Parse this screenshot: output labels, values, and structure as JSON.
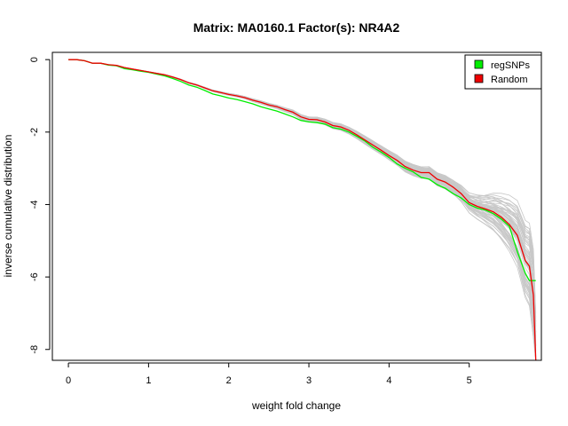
{
  "chart_data": {
    "type": "line",
    "title": "Matrix: MA0160.1 Factor(s): NR4A2",
    "xlabel": "weight fold change",
    "ylabel": "inverse cumulative distribution",
    "xlim": [
      -0.2,
      5.9
    ],
    "ylim": [
      -8.3,
      0.2
    ],
    "xticks": [
      0,
      1,
      2,
      3,
      4,
      5
    ],
    "yticks": [
      0,
      -2,
      -4,
      -6,
      -8
    ],
    "legend": {
      "position": "top-right",
      "entries": [
        {
          "label": "regSNPs",
          "color": "#00ee00"
        },
        {
          "label": "Random",
          "color": "#ee0000"
        }
      ]
    },
    "background_color": "#c8c8c8",
    "series": [
      {
        "name": "regSNPs",
        "color": "#00ee00",
        "x": [
          0.0,
          0.1,
          0.2,
          0.3,
          0.4,
          0.5,
          0.6,
          0.7,
          0.8,
          0.9,
          1.0,
          1.1,
          1.2,
          1.3,
          1.4,
          1.5,
          1.6,
          1.7,
          1.8,
          1.9,
          2.0,
          2.1,
          2.2,
          2.3,
          2.4,
          2.5,
          2.6,
          2.7,
          2.8,
          2.9,
          3.0,
          3.1,
          3.2,
          3.3,
          3.4,
          3.5,
          3.6,
          3.7,
          3.8,
          3.9,
          4.0,
          4.1,
          4.2,
          4.3,
          4.4,
          4.5,
          4.6,
          4.7,
          4.8,
          4.9,
          5.0,
          5.1,
          5.2,
          5.3,
          5.4,
          5.5,
          5.6,
          5.7,
          5.75,
          5.8,
          5.83
        ],
        "y": [
          0.0,
          0.0,
          -0.03,
          -0.1,
          -0.1,
          -0.15,
          -0.17,
          -0.25,
          -0.28,
          -0.32,
          -0.35,
          -0.4,
          -0.45,
          -0.52,
          -0.6,
          -0.7,
          -0.76,
          -0.85,
          -0.95,
          -1.0,
          -1.06,
          -1.1,
          -1.16,
          -1.22,
          -1.3,
          -1.36,
          -1.42,
          -1.5,
          -1.58,
          -1.68,
          -1.72,
          -1.74,
          -1.78,
          -1.88,
          -1.92,
          -2.0,
          -2.12,
          -2.25,
          -2.42,
          -2.55,
          -2.7,
          -2.88,
          -3.0,
          -3.1,
          -3.25,
          -3.3,
          -3.45,
          -3.55,
          -3.7,
          -3.82,
          -4.0,
          -4.1,
          -4.15,
          -4.25,
          -4.4,
          -4.6,
          -5.3,
          -5.9,
          -6.1,
          -6.1,
          -6.1
        ]
      },
      {
        "name": "Random",
        "color": "#ee0000",
        "x": [
          0.0,
          0.1,
          0.2,
          0.3,
          0.4,
          0.5,
          0.6,
          0.7,
          0.8,
          0.9,
          1.0,
          1.1,
          1.2,
          1.3,
          1.4,
          1.5,
          1.6,
          1.7,
          1.8,
          1.9,
          2.0,
          2.1,
          2.2,
          2.3,
          2.4,
          2.5,
          2.6,
          2.7,
          2.8,
          2.9,
          3.0,
          3.1,
          3.2,
          3.3,
          3.4,
          3.5,
          3.6,
          3.7,
          3.8,
          3.9,
          4.0,
          4.1,
          4.2,
          4.3,
          4.4,
          4.5,
          4.6,
          4.7,
          4.8,
          4.9,
          5.0,
          5.1,
          5.2,
          5.3,
          5.4,
          5.5,
          5.6,
          5.7,
          5.75,
          5.8,
          5.83
        ],
        "y": [
          0.0,
          0.0,
          -0.03,
          -0.1,
          -0.1,
          -0.14,
          -0.16,
          -0.22,
          -0.26,
          -0.3,
          -0.34,
          -0.38,
          -0.42,
          -0.48,
          -0.55,
          -0.64,
          -0.7,
          -0.78,
          -0.86,
          -0.91,
          -0.96,
          -1.0,
          -1.05,
          -1.12,
          -1.18,
          -1.25,
          -1.3,
          -1.38,
          -1.45,
          -1.58,
          -1.65,
          -1.66,
          -1.72,
          -1.82,
          -1.86,
          -1.95,
          -2.08,
          -2.22,
          -2.36,
          -2.5,
          -2.65,
          -2.78,
          -2.95,
          -3.05,
          -3.12,
          -3.12,
          -3.3,
          -3.38,
          -3.52,
          -3.7,
          -3.95,
          -4.05,
          -4.12,
          -4.2,
          -4.35,
          -4.55,
          -4.85,
          -5.55,
          -5.7,
          -6.5,
          -8.3
        ]
      }
    ]
  }
}
